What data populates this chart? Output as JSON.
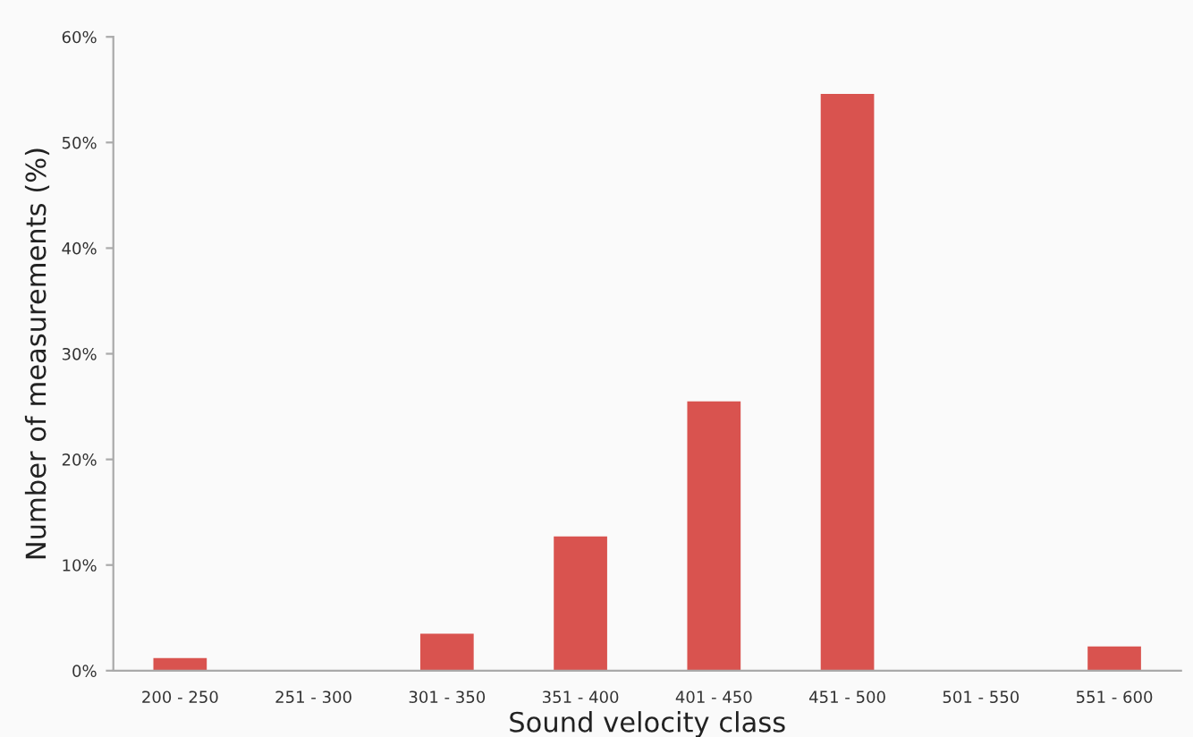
{
  "chart_data": {
    "type": "bar",
    "xlabel": "Sound velocity class",
    "ylabel": "Number of measurements (%)",
    "categories": [
      "200 - 250",
      "251 - 300",
      "301 - 350",
      "351 - 400",
      "401 - 450",
      "451 - 500",
      "501 - 550",
      "551 - 600"
    ],
    "values": [
      1.2,
      0,
      3.5,
      12.7,
      25.5,
      54.6,
      0,
      2.3
    ],
    "color": "#d9534f",
    "ylim": [
      0,
      60
    ],
    "yticks": [
      {
        "value": 0,
        "label": "0%"
      },
      {
        "value": 10,
        "label": "10%"
      },
      {
        "value": 20,
        "label": "20%"
      },
      {
        "value": 30,
        "label": "30%"
      },
      {
        "value": 40,
        "label": "40%"
      },
      {
        "value": 50,
        "label": "50%"
      },
      {
        "value": 60,
        "label": "60%"
      }
    ],
    "grid": false,
    "legend": false
  }
}
